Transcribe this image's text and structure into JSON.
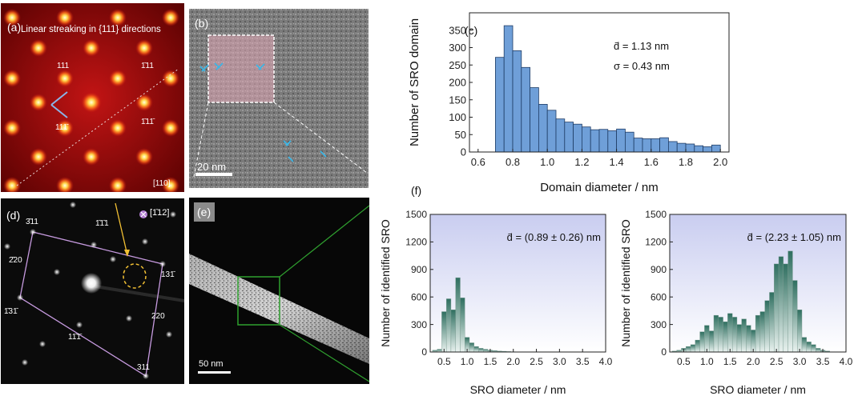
{
  "panel_a": {
    "label": "(a)",
    "caption": "Linear streaking in {111} directions",
    "zone": "[110]",
    "spots": [
      "111",
      "1̄11",
      "111̄",
      "1̄11̄"
    ]
  },
  "panel_b": {
    "label": "(b)",
    "scalebar": "20 nm"
  },
  "panel_d": {
    "label": "(d)",
    "zone": "[1̄12]",
    "spots": [
      "3̄11",
      "1̄1̄1",
      "2̄20",
      "131̄",
      "1̄31̄",
      "220",
      "11̄1̄",
      "311"
    ]
  },
  "panel_e": {
    "label": "(e)",
    "scalebar": "50 nm"
  },
  "panel_c": {
    "label": "(c)"
  },
  "panel_f": {
    "label": "(f)"
  },
  "colors": {
    "hist_c_fill": "#6f9fd8",
    "hist_f_fill": "#4e8c7c",
    "plot_bg_top": "#c9cdf0"
  },
  "chart_data": [
    {
      "type": "bar",
      "id": "c",
      "title": "",
      "xlabel": "Domain diameter / nm",
      "ylabel": "Number of SRO domain",
      "xlim": [
        0.55,
        2.05
      ],
      "ylim": [
        0,
        400
      ],
      "xticks": [
        "0.6",
        "0.8",
        "1.0",
        "1.2",
        "1.4",
        "1.6",
        "1.8",
        "2.0"
      ],
      "yticks": [
        "0",
        "50",
        "100",
        "150",
        "200",
        "250",
        "300",
        "350"
      ],
      "bin_width": 0.05,
      "x": [
        0.725,
        0.775,
        0.825,
        0.875,
        0.925,
        0.975,
        1.025,
        1.075,
        1.125,
        1.175,
        1.225,
        1.275,
        1.325,
        1.375,
        1.425,
        1.475,
        1.525,
        1.575,
        1.625,
        1.675,
        1.725,
        1.775,
        1.825,
        1.875,
        1.925,
        1.975
      ],
      "values": [
        272,
        363,
        291,
        243,
        185,
        137,
        120,
        95,
        86,
        80,
        72,
        64,
        65,
        61,
        66,
        57,
        40,
        38,
        38,
        41,
        30,
        25,
        23,
        18,
        15,
        20
      ],
      "annotations": [
        "d̄ = 1.13 nm",
        "σ = 0.43 nm"
      ]
    },
    {
      "type": "bar",
      "id": "f-left",
      "title": "",
      "xlabel": "SRO diameter / nm",
      "ylabel": "Number of identified SRO",
      "xlim": [
        0.2,
        4.0
      ],
      "ylim": [
        0,
        1500
      ],
      "xticks": [
        "0.5",
        "1.0",
        "1.5",
        "2.0",
        "2.5",
        "3.0",
        "3.5",
        "4.0"
      ],
      "yticks": [
        "0",
        "300",
        "600",
        "900",
        "1200",
        "1500"
      ],
      "bin_width": 0.1,
      "x": [
        0.3,
        0.4,
        0.5,
        0.6,
        0.7,
        0.8,
        0.9,
        1.0,
        1.1,
        1.2,
        1.3,
        1.4,
        1.5,
        1.6,
        1.7,
        1.8,
        1.9,
        2.0
      ],
      "values": [
        20,
        30,
        440,
        580,
        460,
        810,
        590,
        160,
        100,
        60,
        40,
        30,
        20,
        15,
        10,
        8,
        5,
        3
      ],
      "annotations": [
        "d̄ = (0.89 ± 0.26) nm"
      ]
    },
    {
      "type": "bar",
      "id": "f-right",
      "title": "",
      "xlabel": "SRO diameter / nm",
      "ylabel": "Number of identified SRO",
      "xlim": [
        0.2,
        4.0
      ],
      "ylim": [
        0,
        1500
      ],
      "xticks": [
        "0.5",
        "1.0",
        "1.5",
        "2.0",
        "2.5",
        "3.0",
        "3.5",
        "4.0"
      ],
      "yticks": [
        "0",
        "300",
        "600",
        "900",
        "1200",
        "1500"
      ],
      "bin_width": 0.1,
      "x": [
        0.3,
        0.4,
        0.5,
        0.6,
        0.7,
        0.8,
        0.9,
        1.0,
        1.1,
        1.2,
        1.3,
        1.4,
        1.5,
        1.6,
        1.7,
        1.8,
        1.9,
        2.0,
        2.1,
        2.2,
        2.3,
        2.4,
        2.5,
        2.6,
        2.7,
        2.8,
        2.9,
        3.0,
        3.1,
        3.2,
        3.3,
        3.4,
        3.5,
        3.6
      ],
      "values": [
        10,
        20,
        40,
        60,
        80,
        130,
        220,
        290,
        230,
        400,
        380,
        330,
        420,
        380,
        300,
        360,
        290,
        240,
        400,
        440,
        560,
        650,
        960,
        1040,
        960,
        1100,
        780,
        460,
        160,
        110,
        80,
        40,
        20,
        10
      ],
      "annotations": [
        "d̄ = (2.23 ± 1.05) nm"
      ]
    }
  ]
}
